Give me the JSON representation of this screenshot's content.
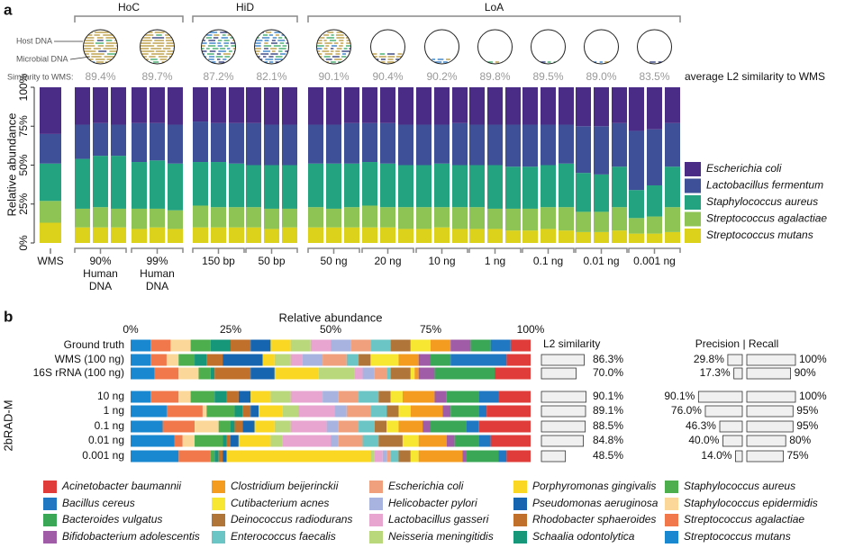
{
  "chart_data": [
    {
      "type": "stacked_bar",
      "panel": "a",
      "ylabel": "Relative abundance",
      "ylim": [
        0,
        100
      ],
      "yticks": [
        {
          "value": 0,
          "label": "0%"
        },
        {
          "value": 25,
          "label": "25%"
        },
        {
          "value": 50,
          "label": "50%"
        },
        {
          "value": 75,
          "label": "75%"
        },
        {
          "value": 100,
          "label": "100%"
        }
      ],
      "categories": [
        "WMS",
        null,
        null,
        null,
        null,
        null,
        null,
        null,
        null,
        null,
        null,
        null,
        null,
        null,
        null,
        null,
        null,
        null,
        null,
        null,
        null,
        null,
        null,
        null,
        null,
        null,
        null,
        null,
        null,
        null,
        null,
        null,
        null,
        null
      ],
      "groups": [
        [
          "90%",
          "Human",
          "DNA"
        ],
        [
          "99%",
          "Human",
          "DNA"
        ],
        [
          "150 bp"
        ],
        [
          "50 bp"
        ],
        [
          "50 ng"
        ],
        [
          "20 ng"
        ],
        [
          "10 ng"
        ],
        [
          "1 ng"
        ],
        [
          "0.1 ng"
        ],
        [
          "0.01 ng"
        ],
        [
          "0.001 ng"
        ]
      ],
      "supergroups": [
        "HoC",
        "HiD",
        "LoA"
      ],
      "inset_labels": [
        "Host DNA",
        "Microbial DNA"
      ],
      "similarity_label": "Similarity to WMS:",
      "similarity": {
        "values": [
          89.4,
          89.7,
          87.2,
          82.1,
          90.1,
          90.4,
          90.2,
          89.8,
          89.5,
          89.0,
          83.5
        ],
        "value_labels": [
          "89.4%",
          "89.7%",
          "87.2%",
          "82.1%",
          "90.1%",
          "90.4%",
          "90.2%",
          "89.8%",
          "89.5%",
          "89.0%",
          "83.5%"
        ]
      },
      "similarity_note": "average L2 similarity to WMS",
      "series": [
        {
          "name": "Escherichia coli",
          "color": "#4a2c86",
          "values": [
            30,
            24,
            23,
            24,
            23,
            23,
            24,
            22,
            23,
            23,
            23,
            24,
            24,
            24,
            24,
            23,
            23,
            23,
            24,
            24,
            24,
            23,
            24,
            24,
            24,
            24,
            24,
            24,
            25,
            25,
            23,
            28,
            27,
            23
          ]
        },
        {
          "name": "Lactobacillus fermentum",
          "color": "#3e5097",
          "values": [
            19,
            22,
            21,
            20,
            25,
            24,
            25,
            26,
            25,
            26,
            27,
            26,
            26,
            25,
            25,
            26,
            25,
            26,
            26,
            26,
            25,
            27,
            26,
            26,
            27,
            27,
            26,
            25,
            30,
            31,
            28,
            38,
            36,
            28
          ]
        },
        {
          "name": "Staphylococcus aureus",
          "color": "#23a37f",
          "values": [
            24,
            32,
            33,
            34,
            30,
            31,
            30,
            28,
            29,
            28,
            27,
            28,
            28,
            28,
            29,
            28,
            28,
            28,
            27,
            27,
            28,
            27,
            27,
            28,
            27,
            27,
            27,
            28,
            25,
            24,
            26,
            18,
            20,
            26
          ]
        },
        {
          "name": "Streptococcus agalactiae",
          "color": "#8dc453",
          "values": [
            14,
            12,
            13,
            12,
            13,
            12,
            12,
            14,
            13,
            13,
            13,
            13,
            12,
            13,
            12,
            13,
            14,
            13,
            14,
            14,
            13,
            14,
            14,
            13,
            14,
            14,
            14,
            15,
            13,
            13,
            15,
            10,
            11,
            16
          ]
        },
        {
          "name": "Streptococcus mutans",
          "color": "#dcd21c",
          "values": [
            13,
            10,
            10,
            10,
            9,
            10,
            9,
            10,
            10,
            10,
            10,
            9,
            10,
            10,
            10,
            10,
            10,
            10,
            9,
            9,
            10,
            9,
            9,
            9,
            8,
            8,
            9,
            8,
            7,
            7,
            8,
            6,
            6,
            7
          ]
        }
      ]
    },
    {
      "type": "stacked_barh",
      "panel": "b",
      "xlabel": "Relative abundance",
      "xlim": [
        0,
        100
      ],
      "xticks": [
        {
          "value": 0,
          "label": "0%"
        },
        {
          "value": 25,
          "label": "25%"
        },
        {
          "value": 50,
          "label": "50%"
        },
        {
          "value": 75,
          "label": "75%"
        },
        {
          "value": 100,
          "label": "100%"
        }
      ],
      "categories": [
        "Ground truth",
        "WMS (100 ng)",
        "16S rRNA (100 ng)",
        "10 ng",
        "1 ng",
        "0.1 ng",
        "0.01 ng",
        "0.001 ng"
      ],
      "group_label": "2bRAD-M",
      "series": [
        {
          "name": "Acinetobacter baumannii",
          "color": "#e03c3a",
          "values": [
            5,
            6,
            9,
            8,
            11,
            13,
            10,
            6
          ]
        },
        {
          "name": "Bacillus cereus",
          "color": "#1f78c1",
          "values": [
            5,
            14,
            0,
            5,
            2,
            3,
            3,
            2
          ]
        },
        {
          "name": "Bacteroides vulgatus",
          "color": "#3aa757",
          "values": [
            5,
            5,
            15,
            8,
            7,
            9,
            6,
            8
          ]
        },
        {
          "name": "Bifidobacterium adolescentis",
          "color": "#a05ca6",
          "values": [
            5,
            3,
            4,
            3,
            2,
            2,
            2,
            1
          ]
        },
        {
          "name": "Clostridium beijerinckii",
          "color": "#f39c1f",
          "values": [
            5,
            5,
            1,
            8,
            8,
            6,
            7,
            11
          ]
        },
        {
          "name": "Cutibacterium acnes",
          "color": "#f7e733",
          "values": [
            5,
            7,
            1,
            3,
            3,
            3,
            4,
            2
          ]
        },
        {
          "name": "Deinococcus radiodurans",
          "color": "#b07538",
          "values": [
            5,
            3,
            5,
            3,
            3,
            3,
            6,
            3
          ]
        },
        {
          "name": "Enterococcus faecalis",
          "color": "#6cc5c5",
          "values": [
            5,
            3,
            1,
            5,
            4,
            4,
            4,
            2
          ]
        },
        {
          "name": "Escherichia coli",
          "color": "#f0a07c",
          "values": [
            5,
            6,
            3,
            5,
            6,
            5,
            6,
            1
          ]
        },
        {
          "name": "Helicobacter pylori",
          "color": "#a9b3e0",
          "values": [
            5,
            5,
            3,
            4,
            3,
            3,
            2,
            1
          ]
        },
        {
          "name": "Lactobacillus gasseri",
          "color": "#e8a5cf",
          "values": [
            5,
            3,
            2,
            8,
            9,
            9,
            12,
            2
          ]
        },
        {
          "name": "Neisseria meningitidis",
          "color": "#b9d77b",
          "values": [
            5,
            4,
            9,
            5,
            4,
            4,
            3,
            1
          ]
        },
        {
          "name": "Porphyromonas gingivalis",
          "color": "#fad722",
          "values": [
            5,
            3,
            11,
            5,
            6,
            5,
            8,
            36
          ]
        },
        {
          "name": "Pseudomonas aeruginosa",
          "color": "#1565b0",
          "values": [
            5,
            10,
            6,
            3,
            2,
            3,
            2,
            1
          ]
        },
        {
          "name": "Rhodobacter sphaeroides",
          "color": "#c0702a",
          "values": [
            5,
            4,
            9,
            3,
            2,
            2,
            1,
            1
          ]
        },
        {
          "name": "Schaalia odontolytica",
          "color": "#16977a",
          "values": [
            5,
            3,
            1,
            3,
            2,
            1,
            1,
            1
          ]
        },
        {
          "name": "Staphylococcus aureus",
          "color": "#4cae4c",
          "values": [
            5,
            4,
            3,
            6,
            7,
            3,
            7,
            1
          ]
        },
        {
          "name": "Staphylococcus epidermidis",
          "color": "#fbd89a",
          "values": [
            5,
            3,
            5,
            3,
            1,
            6,
            3,
            0
          ]
        },
        {
          "name": "Streptococcus agalactiae",
          "color": "#f0784a",
          "values": [
            5,
            4,
            6,
            7,
            9,
            8,
            2,
            8
          ]
        },
        {
          "name": "Streptococcus mutans",
          "color": "#1a88d0",
          "values": [
            5,
            5,
            6,
            5,
            9,
            8,
            11,
            12
          ]
        }
      ]
    },
    {
      "type": "barh",
      "title": "L2 similarity",
      "xlim": [
        0,
        100
      ],
      "color": "#f0f0f0",
      "values": [
        null,
        86.3,
        70.0,
        90.1,
        89.1,
        88.5,
        84.8,
        48.5
      ],
      "value_labels": [
        null,
        "86.3%",
        "70.0%",
        "90.1%",
        "89.1%",
        "88.5%",
        "84.8%",
        "48.5%"
      ]
    },
    {
      "type": "diverging_barh",
      "title": "Precision | Recall",
      "xlim": [
        0,
        100
      ],
      "color": "#f0f0f0",
      "series": [
        {
          "values": [
            null,
            29.8,
            17.3,
            90.1,
            76.0,
            46.3,
            40.0,
            14.0
          ],
          "value_labels": [
            null,
            "29.8%",
            "17.3%",
            "90.1%",
            "76.0%",
            "46.3%",
            "40.0%",
            "14.0%"
          ]
        },
        {
          "values": [
            null,
            100,
            90,
            100,
            95,
            95,
            80,
            75
          ],
          "value_labels": [
            null,
            "100%",
            "90%",
            "100%",
            "95%",
            "95%",
            "80%",
            "75%"
          ]
        }
      ]
    }
  ]
}
